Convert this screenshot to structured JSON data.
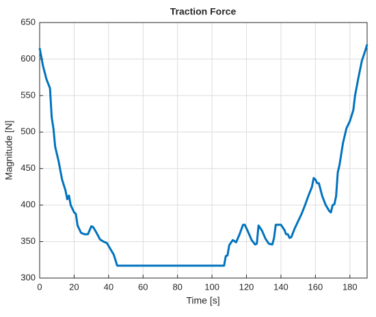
{
  "chart_data": {
    "type": "line",
    "title": "Traction Force",
    "x_label": "Time [s]",
    "y_label": "Magnitude [N]",
    "xlim": [
      0,
      190
    ],
    "ylim": [
      300,
      650
    ],
    "xticks": [
      0,
      20,
      40,
      60,
      80,
      100,
      120,
      140,
      160,
      180
    ],
    "yticks": [
      300,
      350,
      400,
      450,
      500,
      550,
      600,
      650
    ],
    "grid": true,
    "series": [
      {
        "color": "#0072bd",
        "x": [
          0,
          2,
          4,
          6,
          7,
          8,
          9,
          11,
          13,
          15,
          16,
          17,
          18,
          20,
          21,
          22,
          24,
          26,
          28,
          30,
          31,
          33,
          35,
          37,
          39,
          41,
          43,
          45,
          60,
          80,
          100,
          107,
          108,
          109,
          110,
          112,
          114,
          116,
          118,
          119,
          121,
          123,
          125,
          126,
          127,
          129,
          131,
          133,
          135,
          136,
          137,
          140,
          142,
          143,
          144,
          145,
          146,
          148,
          150,
          152,
          154,
          156,
          158,
          159,
          160,
          161,
          162,
          164,
          166,
          168,
          169,
          170,
          171,
          172,
          173,
          174,
          176,
          178,
          180,
          182,
          183,
          185,
          187,
          189,
          190
        ],
        "values": [
          615,
          590,
          572,
          560,
          520,
          505,
          480,
          460,
          435,
          420,
          408,
          413,
          400,
          390,
          388,
          372,
          362,
          360,
          360,
          371,
          370,
          362,
          353,
          350,
          348,
          340,
          332,
          317,
          317,
          317,
          317,
          317,
          330,
          331,
          345,
          352,
          349,
          360,
          373,
          373,
          363,
          352,
          346,
          347,
          372,
          365,
          354,
          347,
          346,
          355,
          373,
          373,
          366,
          360,
          360,
          355,
          356,
          368,
          378,
          388,
          400,
          413,
          425,
          437,
          435,
          430,
          430,
          412,
          400,
          392,
          390,
          400,
          401,
          412,
          445,
          455,
          485,
          505,
          515,
          530,
          550,
          575,
          598,
          612,
          620
        ]
      }
    ]
  }
}
